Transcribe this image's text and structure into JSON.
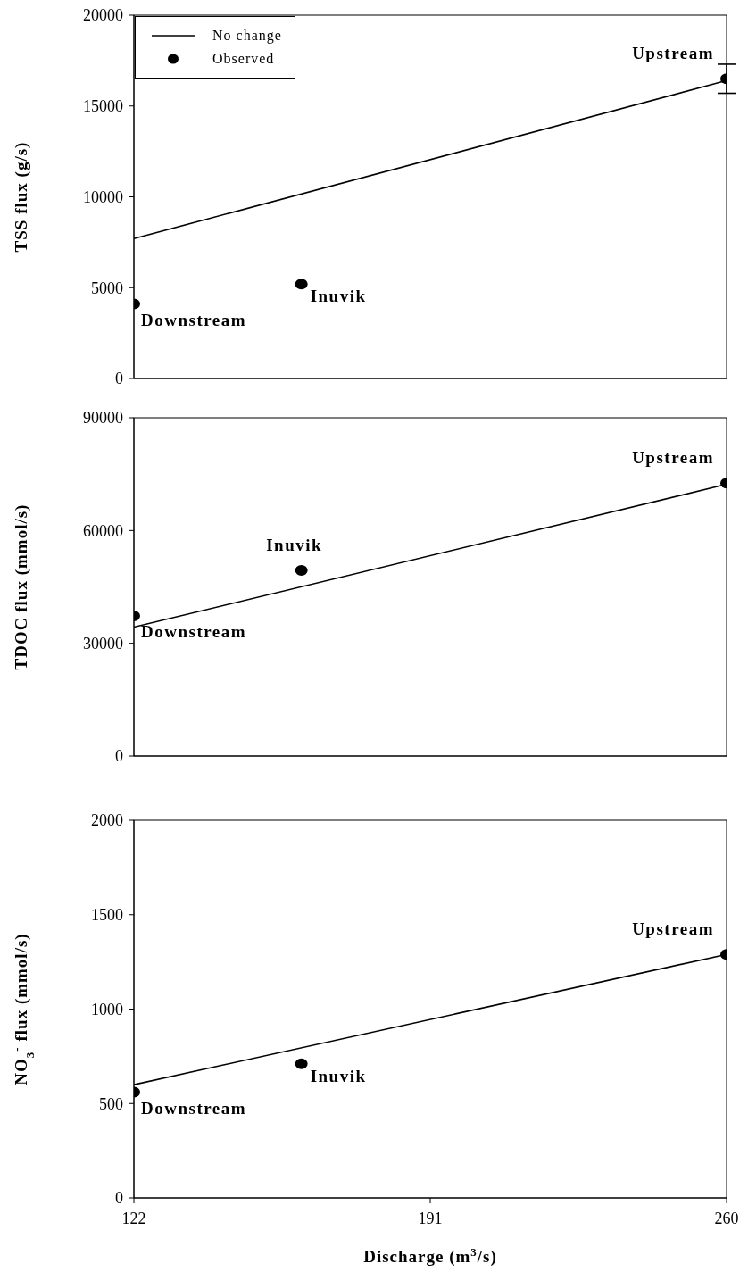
{
  "chart_data": [
    {
      "type": "scatter",
      "ylabel": "TSS flux (g/s)",
      "xlim": [
        122,
        260
      ],
      "xticks": [
        122,
        191,
        260
      ],
      "ylim": [
        0,
        20000
      ],
      "yticks": [
        0,
        5000,
        10000,
        15000,
        20000
      ],
      "tick_labels": "y",
      "grid": false,
      "legend": "top left",
      "marker": "circle",
      "series": [
        {
          "name": "No change",
          "type": "line",
          "marker": "none",
          "color": "#000000",
          "x": [
            122,
            260
          ],
          "values": [
            7700,
            16400
          ]
        },
        {
          "name": "Observed",
          "color": "#000000",
          "x": [
            122,
            161,
            260
          ],
          "values": [
            4100,
            5200,
            16500
          ],
          "errors": [
            null,
            null,
            800
          ]
        }
      ],
      "annotations": [
        {
          "text": "Downstream",
          "x": 122,
          "y": 4100
        },
        {
          "text": "Inuvik",
          "x": 161,
          "y": 5200
        },
        {
          "text": "Upstream",
          "x": 260,
          "y": 16500
        }
      ]
    },
    {
      "type": "scatter",
      "ylabel": "TDOC flux (mmol/s)",
      "xlim": [
        122,
        260
      ],
      "xticks": [
        122,
        191,
        260
      ],
      "ylim": [
        0,
        90000
      ],
      "yticks": [
        0,
        30000,
        60000,
        90000
      ],
      "tick_labels": "y",
      "grid": false,
      "legend": false,
      "marker": "circle",
      "series": [
        {
          "type": "line",
          "marker": "none",
          "color": "#000000",
          "x": [
            122,
            260
          ],
          "values": [
            34300,
            72300
          ]
        },
        {
          "color": "#000000",
          "x": [
            122,
            161,
            260
          ],
          "values": [
            37300,
            49400,
            72600
          ]
        }
      ],
      "annotations": [
        {
          "text": "Downstream",
          "x": 122,
          "y": 37300
        },
        {
          "text": "Inuvik",
          "x": 161,
          "y": 49400
        },
        {
          "text": "Upstream",
          "x": 260,
          "y": 72600
        }
      ]
    },
    {
      "type": "scatter",
      "ylabel": "NO$_{3}$$^{-}$ flux (mmol/s)",
      "xlabel": "Discharge (m$^{3}$/s)",
      "xlim": [
        122,
        260
      ],
      "xticks": [
        122,
        191,
        260
      ],
      "ylim": [
        0,
        2000
      ],
      "yticks": [
        0,
        500,
        1000,
        1500,
        2000
      ],
      "grid": false,
      "legend": false,
      "marker": "circle",
      "series": [
        {
          "type": "line",
          "marker": "none",
          "color": "#000000",
          "x": [
            122,
            260
          ],
          "values": [
            600,
            1290
          ]
        },
        {
          "color": "#000000",
          "x": [
            122,
            161,
            260
          ],
          "values": [
            560,
            710,
            1290
          ]
        }
      ],
      "annotations": [
        {
          "text": "Downstream",
          "x": 122,
          "y": 560
        },
        {
          "text": "Inuvik",
          "x": 161,
          "y": 710
        },
        {
          "text": "Upstream",
          "x": 260,
          "y": 1290
        }
      ]
    }
  ]
}
